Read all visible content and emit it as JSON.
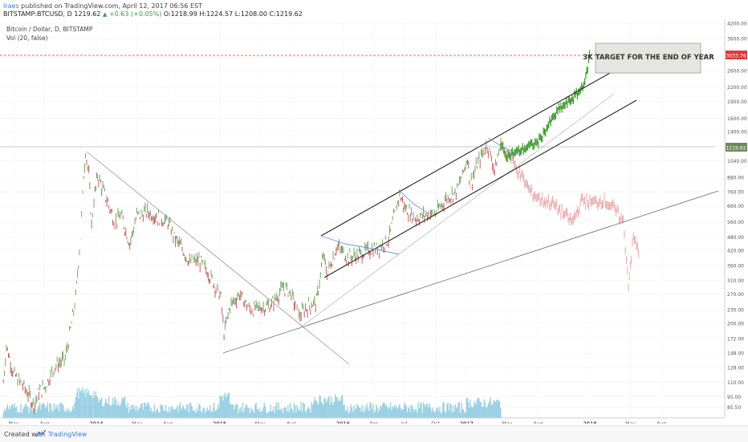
{
  "header": {
    "author": "Iraes",
    "published_text": " published on TradingView.com, April 12, 2017 06:56 EST",
    "symbol": "BITSTAMP:BTCUSD, D",
    "last": "1219.62",
    "change_arrow": "▲",
    "change": "+0.63 (+0.05%)",
    "open": "O:1218.99",
    "high": "H:1224.57",
    "low": "L:1208.00",
    "close": "C:1219.62"
  },
  "legend": {
    "series_name": "Bitcoin / Dollar, D, BITSTAMP",
    "volume_name": "Vol (20, false)"
  },
  "footer": {
    "created_with": "Created with",
    "brand": "TradingView"
  },
  "colors": {
    "up_candle": "#6a9a55",
    "down_candle": "#b5544f",
    "volume": "#7ec3dc",
    "projection_up": "#3a9a2a",
    "projection_down": "#e8a7a7",
    "channel": "#222222",
    "trendline_gray": "#888888",
    "pattern_blue": "#6b9ad8",
    "target_line": "#e03b3b",
    "price_label_bg": "#6d8a5a",
    "target_label_bg": "#e03b3b"
  },
  "chart_data": {
    "type": "line",
    "title": "",
    "scale": "log",
    "y_ticks": [
      "4200.00",
      "3600.00",
      "3000.00",
      "2600.00",
      "2200.00",
      "1900.00",
      "1600.00",
      "1400.00",
      "1200.00",
      "1040.00",
      "880.00",
      "760.00",
      "660.00",
      "560.00",
      "480.00",
      "420.00",
      "360.00",
      "310.00",
      "270.00",
      "230.00",
      "200.00",
      "172.00",
      "148.00",
      "128.00",
      "110.00",
      "95.00",
      "85.50"
    ],
    "x_ticks": [
      "May",
      "Aug",
      "2014",
      "May",
      "Aug",
      "2015",
      "May",
      "Aug",
      "2016",
      "Apr",
      "Jul",
      "Oct",
      "2017",
      "May",
      "Aug",
      "2018",
      "May",
      "Aug"
    ],
    "current_price": 1219.62,
    "target_price": 3033.76,
    "annotation": "3K TARGET FOR THE END OF YEAR",
    "series": [
      {
        "role": "price",
        "x": [
          "2013-04-01",
          "2013-04-10",
          "2013-05-01",
          "2013-06-01",
          "2013-07-01",
          "2013-07-15",
          "2013-08-01",
          "2013-09-01",
          "2013-10-01",
          "2013-10-20",
          "2013-11-01",
          "2013-11-15",
          "2013-11-25",
          "2013-11-30",
          "2013-12-10",
          "2013-12-18",
          "2013-12-25",
          "2014-01-05",
          "2014-02-01",
          "2014-02-25",
          "2014-03-15",
          "2014-04-10",
          "2014-05-01",
          "2014-06-01",
          "2014-07-01",
          "2014-08-01",
          "2014-08-20",
          "2014-09-15",
          "2014-10-05",
          "2014-11-01",
          "2014-12-01",
          "2015-01-05",
          "2015-01-14",
          "2015-02-01",
          "2015-03-01",
          "2015-04-01",
          "2015-05-01",
          "2015-06-01",
          "2015-07-10",
          "2015-08-01",
          "2015-08-24",
          "2015-09-15",
          "2015-10-15",
          "2015-11-04",
          "2015-11-15",
          "2015-12-15",
          "2016-01-15",
          "2016-02-15",
          "2016-03-15",
          "2016-04-15",
          "2016-05-15",
          "2016-06-17",
          "2016-07-01",
          "2016-08-02",
          "2016-09-01",
          "2016-10-01",
          "2016-11-01",
          "2016-12-01",
          "2016-12-20",
          "2017-01-04",
          "2017-01-12",
          "2017-02-01",
          "2017-03-03",
          "2017-03-25",
          "2017-04-12"
        ],
        "y": [
          110,
          160,
          120,
          105,
          88,
          100,
          105,
          130,
          140,
          200,
          260,
          480,
          900,
          1150,
          900,
          540,
          700,
          900,
          700,
          560,
          600,
          450,
          600,
          620,
          590,
          560,
          480,
          420,
          370,
          380,
          330,
          260,
          180,
          240,
          270,
          230,
          235,
          240,
          290,
          270,
          215,
          235,
          250,
          400,
          330,
          440,
          390,
          400,
          420,
          430,
          470,
          740,
          650,
          580,
          600,
          610,
          710,
          760,
          900,
          1080,
          820,
          1000,
          1230,
          950,
          1219.62
        ]
      },
      {
        "role": "bull_projection",
        "x": [
          "2017-04-12",
          "2017-05-01",
          "2017-06-01",
          "2017-07-01",
          "2017-08-01",
          "2017-09-01",
          "2017-10-01",
          "2017-11-01",
          "2017-12-01",
          "2017-12-20",
          "2017-12-31"
        ],
        "y": [
          1219.62,
          1100,
          1140,
          1200,
          1260,
          1500,
          1750,
          1900,
          2100,
          2400,
          3033.76
        ]
      },
      {
        "role": "bear_projection",
        "x": [
          "2017-04-12",
          "2017-05-10",
          "2017-06-10",
          "2017-07-10",
          "2017-08-10",
          "2017-09-10",
          "2017-10-10",
          "2017-11-10",
          "2017-12-10",
          "2018-01-10",
          "2018-02-10",
          "2018-03-10",
          "2018-04-10",
          "2018-04-25",
          "2018-05-10",
          "2018-05-25"
        ],
        "y": [
          1219.62,
          1080,
          900,
          760,
          700,
          680,
          620,
          560,
          700,
          680,
          700,
          650,
          560,
          300,
          480,
          420
        ]
      }
    ],
    "volume_label": "Vol (20, false)"
  }
}
